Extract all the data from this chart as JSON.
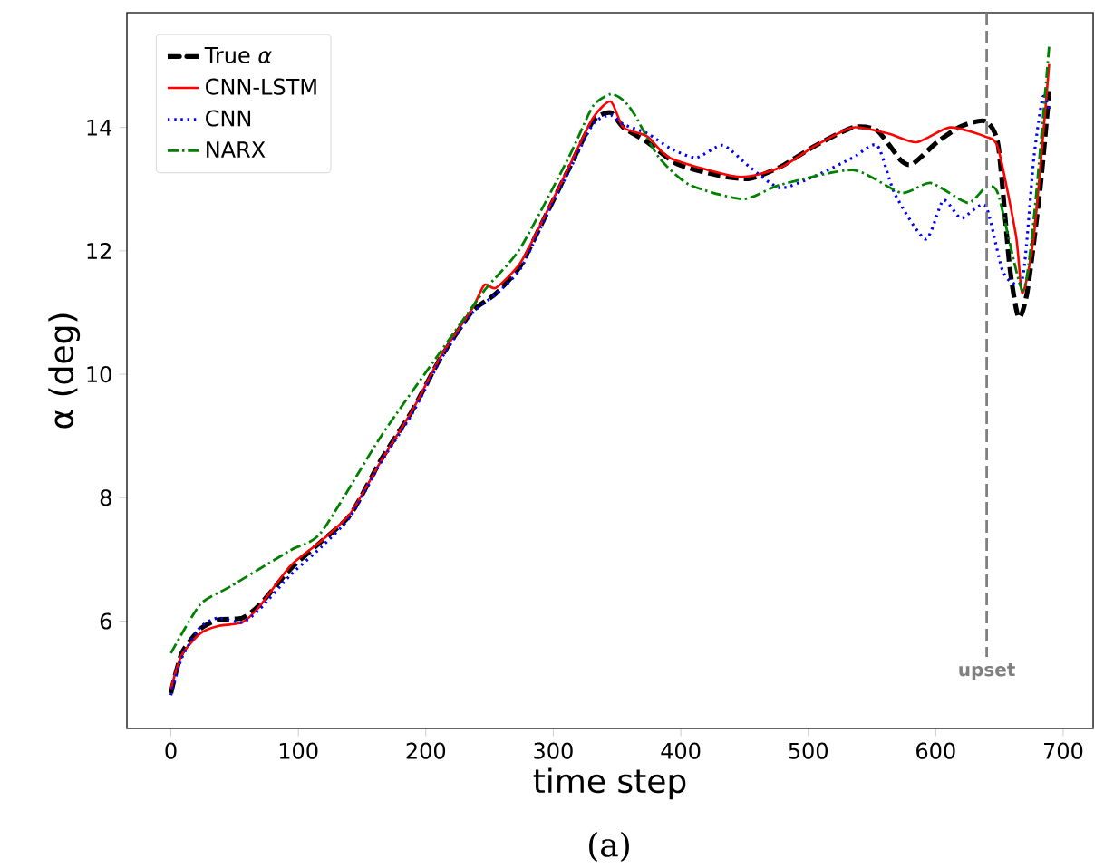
{
  "chart_data": {
    "type": "line",
    "xlabel": "time step",
    "ylabel": "α (deg)",
    "xlim": [
      -34.5,
      723.5
    ],
    "ylim": [
      4.26,
      15.86
    ],
    "xticks": [
      0,
      100,
      200,
      300,
      400,
      500,
      600,
      700
    ],
    "yticks": [
      6,
      8,
      10,
      12,
      14
    ],
    "legend": "top left",
    "grid": false,
    "series": [
      {
        "name": "True *α*",
        "color": "#000000",
        "line_style": "dashed",
        "x": [
          0,
          8.5,
          23,
          37,
          56,
          70,
          94,
          118,
          141,
          165,
          189,
          212,
          236,
          255,
          274,
          293,
          312,
          331,
          345,
          355,
          374,
          397,
          430,
          454,
          478,
          506,
          535,
          554,
          573,
          582,
          601,
          620,
          639,
          649,
          658,
          665,
          672,
          682,
          689
        ],
        "values": [
          4.83,
          5.48,
          5.87,
          6.02,
          6.05,
          6.27,
          6.85,
          7.29,
          7.73,
          8.62,
          9.4,
          10.28,
          11.01,
          11.31,
          11.75,
          12.53,
          13.32,
          14.1,
          14.24,
          14.0,
          13.76,
          13.41,
          13.22,
          13.17,
          13.36,
          13.71,
          14.0,
          13.95,
          13.46,
          13.41,
          13.76,
          14.02,
          14.1,
          13.71,
          11.75,
          10.92,
          11.36,
          13.02,
          14.59
        ]
      },
      {
        "name": "CNN-LSTM",
        "color": "#ff0000",
        "line_style": "solid",
        "x": [
          0,
          8.5,
          23,
          37,
          56,
          70,
          94,
          118,
          141,
          165,
          189,
          212,
          236,
          246,
          255,
          274,
          293,
          312,
          331,
          345,
          355,
          374,
          392,
          445,
          478,
          506,
          535,
          563,
          585,
          611,
          639,
          649,
          663,
          668,
          677,
          689
        ],
        "values": [
          4.9,
          5.45,
          5.8,
          5.92,
          5.98,
          6.25,
          6.9,
          7.3,
          7.75,
          8.6,
          9.4,
          10.3,
          11.05,
          11.45,
          11.4,
          11.8,
          12.55,
          13.35,
          14.15,
          14.42,
          14.0,
          13.85,
          13.5,
          13.2,
          13.35,
          13.71,
          14.0,
          13.9,
          13.76,
          14.0,
          13.85,
          13.66,
          12.24,
          11.31,
          12.24,
          15.03
        ]
      },
      {
        "name": "CNN",
        "color": "#0000ff",
        "line_style": "dotted",
        "x": [
          0,
          8.5,
          23,
          37,
          56,
          70,
          94,
          118,
          141,
          165,
          189,
          212,
          236,
          255,
          274,
          293,
          312,
          331,
          345,
          355,
          374,
          392,
          412,
          433,
          454,
          478,
          506,
          535,
          554,
          568,
          592,
          606,
          620,
          639,
          653,
          668,
          677,
          684,
          689
        ],
        "values": [
          4.8,
          5.4,
          5.9,
          6.05,
          5.98,
          6.2,
          6.75,
          7.2,
          7.7,
          8.58,
          9.35,
          10.25,
          10.98,
          11.3,
          11.7,
          12.5,
          13.28,
          14.05,
          14.2,
          14.05,
          13.9,
          13.66,
          13.51,
          13.71,
          13.36,
          13.02,
          13.22,
          13.51,
          13.71,
          12.92,
          12.19,
          12.82,
          12.53,
          12.73,
          11.65,
          11.55,
          13.51,
          14.49,
          14.3
        ]
      },
      {
        "name": "NARX",
        "color": "#008000",
        "line_style": "dashdot",
        "x": [
          0,
          23,
          46.5,
          94,
          118,
          165,
          212,
          246,
          274,
          312,
          331,
          345,
          355,
          364,
          383,
          407,
          449,
          478,
          535,
          573,
          596,
          625,
          639,
          649,
          668,
          677,
          689
        ],
        "values": [
          5.48,
          6.27,
          6.56,
          7.15,
          7.44,
          9.0,
          10.38,
          11.36,
          12.04,
          13.51,
          14.34,
          14.54,
          14.44,
          14.2,
          13.51,
          13.07,
          12.84,
          13.07,
          13.31,
          12.94,
          13.1,
          12.78,
          13.02,
          12.92,
          11.36,
          12.53,
          15.32
        ]
      }
    ],
    "ref_lines": [
      {
        "axis": "x",
        "value": 640,
        "label": "upset",
        "color": "#808080",
        "line_style": "dashed"
      }
    ],
    "annotations": [
      "(a)"
    ]
  }
}
